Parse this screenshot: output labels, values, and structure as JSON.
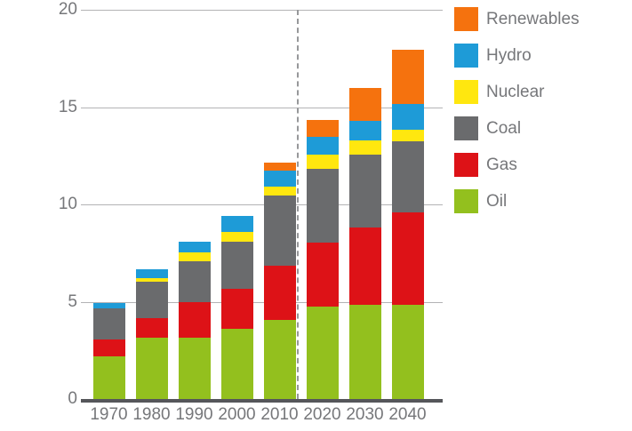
{
  "chart_data": {
    "type": "bar",
    "stacked": true,
    "title": "",
    "xlabel": "",
    "ylabel": "",
    "categories": [
      "1970",
      "1980",
      "1990",
      "2000",
      "2010",
      "2020",
      "2030",
      "2040"
    ],
    "series": [
      {
        "name": "Oil",
        "color": "#93c01e",
        "values": [
          2.2,
          3.15,
          3.15,
          3.6,
          4.05,
          4.75,
          4.85,
          4.85
        ]
      },
      {
        "name": "Gas",
        "color": "#dd1217",
        "values": [
          0.85,
          1.0,
          1.85,
          2.05,
          2.8,
          3.3,
          3.95,
          4.75
        ]
      },
      {
        "name": "Coal",
        "color": "#6a6b6d",
        "values": [
          1.6,
          1.9,
          2.1,
          2.45,
          3.6,
          3.8,
          3.75,
          3.65
        ]
      },
      {
        "name": "Nuclear",
        "color": "#ffe70f",
        "values": [
          0.0,
          0.15,
          0.45,
          0.5,
          0.45,
          0.7,
          0.75,
          0.6
        ]
      },
      {
        "name": "Hydro",
        "color": "#1e9bd7",
        "values": [
          0.3,
          0.45,
          0.55,
          0.8,
          0.85,
          0.9,
          1.0,
          1.3
        ]
      },
      {
        "name": "Renewables",
        "color": "#f5720e",
        "values": [
          0.0,
          0.0,
          0.0,
          0.0,
          0.4,
          0.9,
          1.7,
          2.8
        ]
      }
    ],
    "totals": [
      4.95,
      6.65,
      8.1,
      9.4,
      12.15,
      14.35,
      16.0,
      17.95
    ],
    "ylim": [
      0,
      20
    ],
    "yticks": [
      0,
      5,
      10,
      15,
      20
    ],
    "grid": true,
    "legend_position": "top-right",
    "legend_order": [
      "Renewables",
      "Hydro",
      "Nuclear",
      "Coal",
      "Gas",
      "Oil"
    ],
    "annotations": [
      {
        "type": "vline",
        "style": "dashed",
        "between": [
          "2010",
          "2020"
        ]
      }
    ],
    "colors": {
      "gridline": "#b3b3b5",
      "axis_line": "#55565a",
      "tick_text": "#76777a",
      "divider": "#97989a"
    }
  }
}
